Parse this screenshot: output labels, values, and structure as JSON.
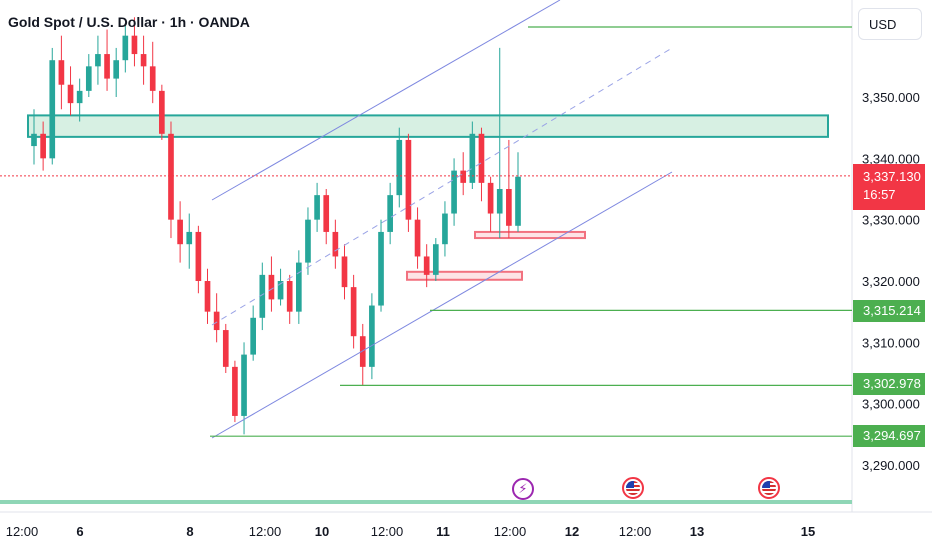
{
  "header": {
    "title": "Gold Spot / U.S. Dollar · 1h · OANDA",
    "currency": "USD"
  },
  "price_badge": {
    "price": "3,337.130",
    "countdown": "16:57"
  },
  "levels": [
    {
      "label": "3,315.214",
      "value": 3315.214
    },
    {
      "label": "3,302.978",
      "value": 3302.978
    },
    {
      "label": "3,294.697",
      "value": 3294.697
    }
  ],
  "events": [
    {
      "name": "lightning-event-icon",
      "kind": "bolt",
      "x_label_pos": 8.5
    },
    {
      "name": "us-flag-event-icon",
      "kind": "flag",
      "x_label_pos": 9.5
    },
    {
      "name": "us-flag-event-icon",
      "kind": "flag",
      "x_label_pos": 10.65
    }
  ],
  "colors": {
    "up": "#26a69a",
    "down": "#f23645",
    "level": "#4caf50",
    "zone_fill": "#d7f0e3",
    "zone_stroke": "#26a69a",
    "channel": "#7e88e0"
  },
  "chart_data": {
    "type": "candlestick",
    "title": "Gold Spot / U.S. Dollar · 1h · OANDA",
    "ylabel": "USD",
    "ylim": [
      3280,
      3365
    ],
    "y_ticks": [
      "3,290.000",
      "3,300.000",
      "3,310.000",
      "3,320.000",
      "3,330.000",
      "3,340.000",
      "3,350.000"
    ],
    "x_ticks": [
      "12:00",
      "6",
      "8",
      "12:00",
      "10",
      "12:00",
      "11",
      "12:00",
      "12",
      "12:00",
      "13",
      "15"
    ],
    "last_price": 3337.13,
    "candles": [
      [
        3342,
        3348,
        3339,
        3344
      ],
      [
        3344,
        3346,
        3338,
        3340
      ],
      [
        3340,
        3358,
        3339,
        3356
      ],
      [
        3356,
        3360,
        3348,
        3352
      ],
      [
        3352,
        3355,
        3347,
        3349
      ],
      [
        3349,
        3353,
        3346,
        3351
      ],
      [
        3351,
        3357,
        3350,
        3355
      ],
      [
        3355,
        3360,
        3352,
        3357
      ],
      [
        3357,
        3361,
        3351,
        3353
      ],
      [
        3353,
        3358,
        3350,
        3356
      ],
      [
        3356,
        3362,
        3354,
        3360
      ],
      [
        3360,
        3363,
        3355,
        3357
      ],
      [
        3357,
        3360,
        3352,
        3355
      ],
      [
        3355,
        3359,
        3349,
        3351
      ],
      [
        3351,
        3352,
        3343,
        3344
      ],
      [
        3344,
        3346,
        3327,
        3330
      ],
      [
        3330,
        3333,
        3323,
        3326
      ],
      [
        3326,
        3331,
        3322,
        3328
      ],
      [
        3328,
        3329,
        3318,
        3320
      ],
      [
        3320,
        3322,
        3313,
        3315
      ],
      [
        3315,
        3318,
        3310,
        3312
      ],
      [
        3312,
        3313,
        3305,
        3306
      ],
      [
        3306,
        3307,
        3297,
        3298
      ],
      [
        3298,
        3310,
        3295,
        3308
      ],
      [
        3308,
        3316,
        3307,
        3314
      ],
      [
        3314,
        3323,
        3312,
        3321
      ],
      [
        3321,
        3324,
        3315,
        3317
      ],
      [
        3317,
        3322,
        3316,
        3320
      ],
      [
        3320,
        3321,
        3313,
        3315
      ],
      [
        3315,
        3325,
        3313,
        3323
      ],
      [
        3323,
        3332,
        3321,
        3330
      ],
      [
        3330,
        3336,
        3328,
        3334
      ],
      [
        3334,
        3335,
        3326,
        3328
      ],
      [
        3328,
        3330,
        3322,
        3324
      ],
      [
        3324,
        3326,
        3317,
        3319
      ],
      [
        3319,
        3321,
        3309,
        3311
      ],
      [
        3311,
        3313,
        3303,
        3306
      ],
      [
        3306,
        3318,
        3304,
        3316
      ],
      [
        3316,
        3330,
        3315,
        3328
      ],
      [
        3328,
        3336,
        3326,
        3334
      ],
      [
        3334,
        3345,
        3332,
        3343
      ],
      [
        3343,
        3344,
        3328,
        3330
      ],
      [
        3330,
        3332,
        3322,
        3324
      ],
      [
        3324,
        3326,
        3319,
        3321
      ],
      [
        3321,
        3327,
        3320,
        3326
      ],
      [
        3326,
        3333,
        3324,
        3331
      ],
      [
        3331,
        3340,
        3329,
        3338
      ],
      [
        3338,
        3341,
        3334,
        3336
      ],
      [
        3336,
        3346,
        3335,
        3344
      ],
      [
        3344,
        3345,
        3333,
        3336
      ],
      [
        3336,
        3337,
        3328,
        3331
      ],
      [
        3331,
        3358,
        3327,
        3335
      ],
      [
        3335,
        3343,
        3327,
        3329
      ],
      [
        3329,
        3341,
        3328,
        3337
      ]
    ]
  }
}
